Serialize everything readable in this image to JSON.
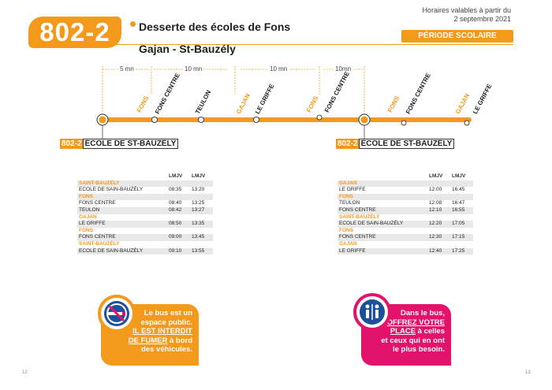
{
  "header": {
    "line": "802-2",
    "title": "Desserte des écoles de Fons",
    "subtitle": "Gajan - St-Bauzély",
    "valid_line1": "Horaires valables à partir du",
    "valid_line2": "2 septembre 2021",
    "period": "PÉRIODE SCOLAIRE"
  },
  "diagram": {
    "durations": [
      "5 mn",
      "10 mn",
      "10 mn",
      "10mn"
    ],
    "stops": [
      {
        "town": "FONS",
        "name": "FONS CENTRE"
      },
      {
        "town": "",
        "name": "TEULON"
      },
      {
        "town": "GAJAN",
        "name": "LE GRIFFE"
      },
      {
        "town": "FONS",
        "name": "FONS CENTRE"
      },
      {
        "town": "FONS",
        "name": "FONS CENTRE"
      },
      {
        "town": "GAJAN",
        "name": "LE GRIFFE"
      }
    ],
    "school_left": {
      "code": "802-2",
      "name": "ÉCOLE DE ST-BAUZÉLY"
    },
    "school_right": {
      "code": "802-2",
      "name": "ÉCOLE DE ST-BAUZÉLY"
    }
  },
  "table_left": {
    "days": [
      "LMJV",
      "LMJV"
    ],
    "rows": [
      {
        "type": "town",
        "label": "SAINT-BAUZÉLY"
      },
      {
        "type": "stop",
        "label": "ECOLE DE SAIN-BAUZÉLY",
        "t1": "08:35",
        "t2": "13:20"
      },
      {
        "type": "town",
        "label": "FONS"
      },
      {
        "type": "stop",
        "label": "FONS CENTRE",
        "t1": "08:40",
        "t2": "13:25"
      },
      {
        "type": "stop",
        "label": "TEULON",
        "t1": "08:42",
        "t2": "13:27"
      },
      {
        "type": "town",
        "label": "GAJAN"
      },
      {
        "type": "stop",
        "label": "LE GRIFFE",
        "t1": "08:50",
        "t2": "13:35"
      },
      {
        "type": "town",
        "label": "FONS"
      },
      {
        "type": "stop",
        "label": "FONS CENTRE",
        "t1": "09:00",
        "t2": "13:45"
      },
      {
        "type": "town",
        "label": "SAINT-BAUZÉLY"
      },
      {
        "type": "stop",
        "label": "ECOLE DE SAIN-BAUZÉLY",
        "t1": "09:10",
        "t2": "13:55"
      }
    ]
  },
  "table_right": {
    "days": [
      "LMJV",
      "LMJV"
    ],
    "rows": [
      {
        "type": "town",
        "label": "GAJAN"
      },
      {
        "type": "stop",
        "label": "LE GRIFFE",
        "t1": "12:00",
        "t2": "16:45"
      },
      {
        "type": "town",
        "label": "FONS"
      },
      {
        "type": "stop",
        "label": "TEULON",
        "t1": "12:08",
        "t2": "16:47"
      },
      {
        "type": "stop",
        "label": "FONS CENTRE",
        "t1": "12:10",
        "t2": "16:55"
      },
      {
        "type": "town",
        "label": "SAINT-BAUZÉLY"
      },
      {
        "type": "stop",
        "label": "ECOLE DE SAIN-BAUZÉLY",
        "t1": "12:20",
        "t2": "17:05"
      },
      {
        "type": "town",
        "label": "FONS"
      },
      {
        "type": "stop",
        "label": "FONS CENTRE",
        "t1": "12:30",
        "t2": "17:15"
      },
      {
        "type": "town",
        "label": "GAJAN"
      },
      {
        "type": "stop",
        "label": "LE GRIFFE",
        "t1": "12:40",
        "t2": "17:25"
      }
    ]
  },
  "info_left": {
    "icon": "no-smoking-icon",
    "l1": "Le bus est un",
    "l2": "espace public.",
    "l3": "IL EST INTERDIT",
    "l4": "DE FUMER",
    "l4b": " à bord",
    "l5": "des véhicules."
  },
  "info_right": {
    "icon": "priority-seat-icon",
    "l1": "Dans le bus,",
    "l2": "OFFREZ VOTRE",
    "l3": "PLACE",
    "l3b": " à celles",
    "l4": "et ceux qui en ont",
    "l5": "le plus besoin."
  },
  "page_numbers": {
    "left": "12",
    "right": "13"
  },
  "colors": {
    "accent": "#f39a1c",
    "pink": "#e3136c"
  }
}
